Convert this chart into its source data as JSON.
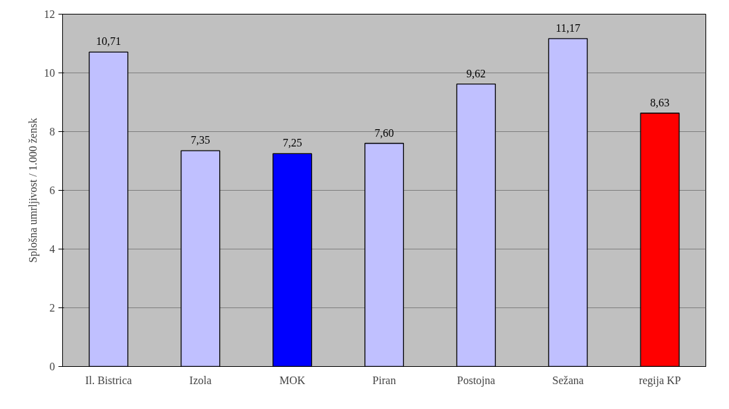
{
  "chart_data": {
    "type": "bar",
    "ylabel": "Splošna umrljivost / 1.000 žensk",
    "categories": [
      "Il. Bistrica",
      "Izola",
      "MOK",
      "Piran",
      "Postojna",
      "Sežana",
      "regija KP"
    ],
    "values": [
      10.71,
      7.35,
      7.25,
      7.6,
      9.62,
      11.17,
      8.63
    ],
    "value_labels": [
      "10,71",
      "7,35",
      "7,25",
      "7,60",
      "9,62",
      "11,17",
      "8,63"
    ],
    "colors": [
      "#c0c0ff",
      "#c0c0ff",
      "#0000ff",
      "#c0c0ff",
      "#c0c0ff",
      "#c0c0ff",
      "#ff0000"
    ],
    "ylim": [
      0,
      12
    ],
    "yticks": [
      0,
      2,
      4,
      6,
      8,
      10,
      12
    ],
    "grid": "y"
  }
}
